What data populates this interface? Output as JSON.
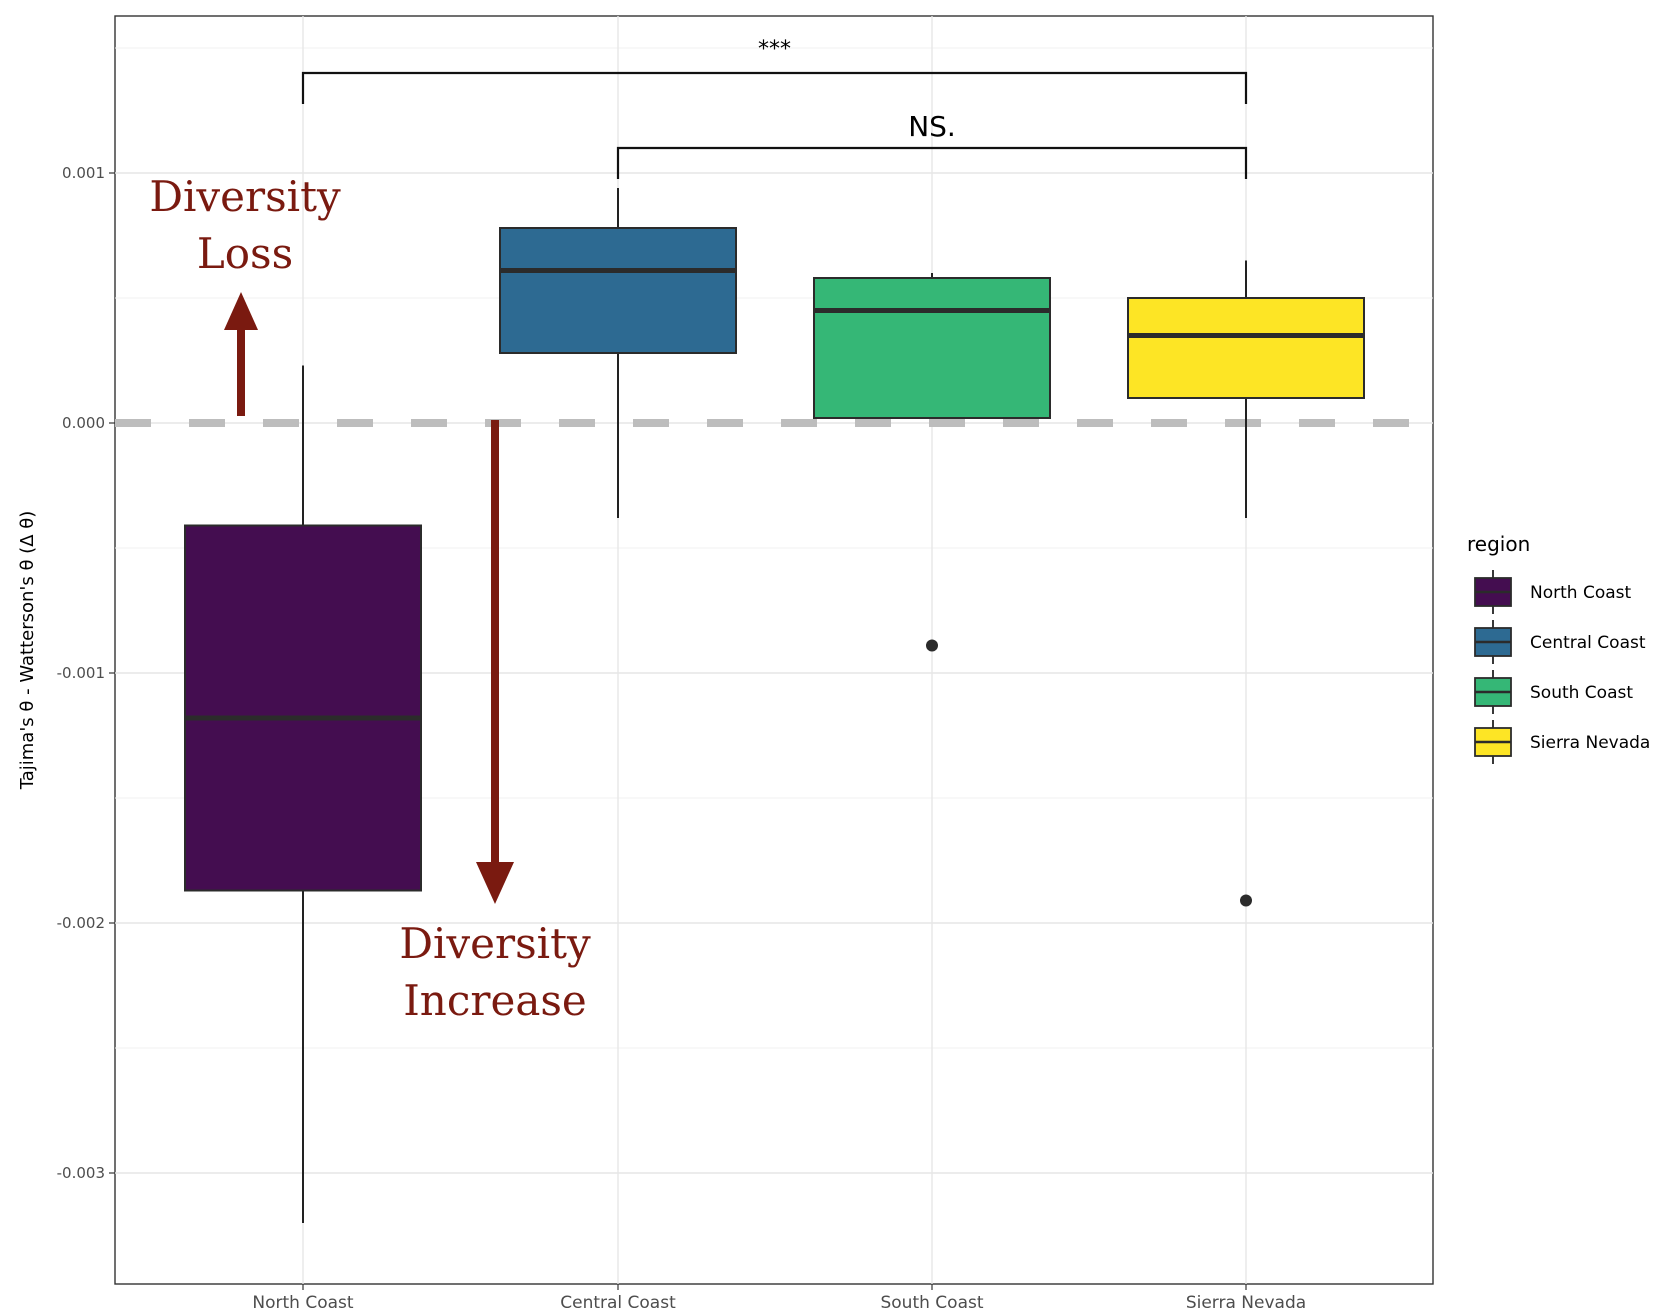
{
  "chart_data": {
    "type": "boxplot",
    "ylabel": "Tajima's θ - Watterson's θ (Δ θ)",
    "xlabel": "",
    "ylim": [
      -0.00342,
      0.00166
    ],
    "y_ticks": [
      0.001,
      0.0,
      -0.001,
      -0.002,
      -0.003
    ],
    "y_tick_labels": [
      "0.001",
      "0.000",
      "-0.001",
      "-0.002",
      "-0.003"
    ],
    "grid": true,
    "reference_line": {
      "y": 0.0,
      "style": "dashed",
      "color": "#bdbdbd"
    },
    "categories": [
      "North Coast",
      "Central Coast",
      "South Coast",
      "Sierra Nevada"
    ],
    "boxes": [
      {
        "name": "North Coast",
        "color": "#440d50",
        "whisker_low": -0.0032,
        "q1": -0.00187,
        "median": -0.00118,
        "q3": -0.00041,
        "whisker_high": 0.00023,
        "outliers": []
      },
      {
        "name": "Central Coast",
        "color": "#2d6a92",
        "whisker_low": -0.00038,
        "q1": 0.00028,
        "median": 0.00061,
        "q3": 0.00078,
        "whisker_high": 0.00094,
        "outliers": []
      },
      {
        "name": "South Coast",
        "color": "#35b776",
        "whisker_low": 2e-05,
        "q1": 2e-05,
        "median": 0.00045,
        "q3": 0.00058,
        "whisker_high": 0.0006,
        "outliers": [
          -0.00089
        ]
      },
      {
        "name": "Sierra Nevada",
        "color": "#fde525",
        "whisker_low": -0.00038,
        "q1": 0.0001,
        "median": 0.00035,
        "q3": 0.0005,
        "whisker_high": 0.00065,
        "outliers": [
          -0.00191
        ]
      }
    ],
    "significance": [
      {
        "from": "North Coast",
        "to": "Sierra Nevada",
        "label": "***",
        "y": 0.0014
      },
      {
        "from": "Central Coast",
        "to": "Sierra Nevada",
        "label": "NS.",
        "y": 0.0011
      }
    ],
    "annotations": [
      {
        "lines": [
          "Diversity",
          "Loss"
        ],
        "direction": "up",
        "color": "#7a1a10"
      },
      {
        "lines": [
          "Diversity",
          "Increase"
        ],
        "direction": "down",
        "color": "#7a1a10"
      }
    ],
    "legend": {
      "title": "region",
      "position": "right",
      "entries": [
        "North Coast",
        "Central Coast",
        "South Coast",
        "Sierra Nevada"
      ]
    }
  }
}
